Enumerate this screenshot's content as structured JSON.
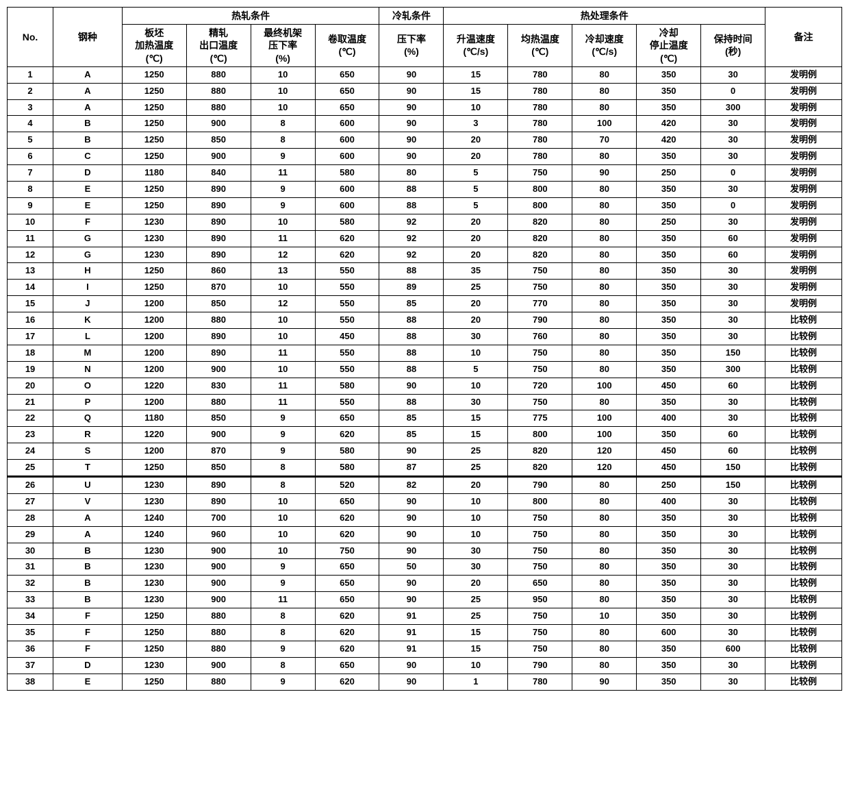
{
  "styling": {
    "background_color": "#ffffff",
    "border_color": "#000000",
    "border_width": 1.5,
    "heavy_border_width": 3,
    "text_color": "#000000",
    "font_weight": "bold",
    "font_size_header": 14,
    "font_size_cell": 13,
    "text_align": "center"
  },
  "headers": {
    "no": "No.",
    "steel_type": "钢种",
    "hot_roll_group": "热轧条件",
    "cold_roll_group": "冷轧条件",
    "heat_treat_group": "热处理条件",
    "slab_heat_temp": "板坯\n加热温度\n(℃)",
    "finish_exit_temp": "精轧\n出口温度\n(℃)",
    "final_stand_rate": "最终机架\n压下率\n(%)",
    "coil_temp": "卷取温度\n(℃)",
    "cold_reduction": "压下率\n(%)",
    "heating_rate": "升温速度\n(℃/s)",
    "soak_temp": "均热温度\n(℃)",
    "cool_rate": "冷却速度\n(℃/s)",
    "cool_stop_temp": "冷却\n停止温度\n(℃)",
    "hold_time": "保持时间\n(秒)",
    "note": "备注"
  },
  "note_labels": {
    "inv": "发明例",
    "comp": "比较例"
  },
  "column_widths": {
    "no": 60,
    "steel": 90,
    "val": 84,
    "note": 100
  },
  "heavy_separator_after_row": 25,
  "rows": [
    {
      "no": "1",
      "steel": "A",
      "v": [
        "1250",
        "880",
        "10",
        "650",
        "90",
        "15",
        "780",
        "80",
        "350",
        "30"
      ],
      "note": "inv"
    },
    {
      "no": "2",
      "steel": "A",
      "v": [
        "1250",
        "880",
        "10",
        "650",
        "90",
        "15",
        "780",
        "80",
        "350",
        "0"
      ],
      "note": "inv"
    },
    {
      "no": "3",
      "steel": "A",
      "v": [
        "1250",
        "880",
        "10",
        "650",
        "90",
        "10",
        "780",
        "80",
        "350",
        "300"
      ],
      "note": "inv"
    },
    {
      "no": "4",
      "steel": "B",
      "v": [
        "1250",
        "900",
        "8",
        "600",
        "90",
        "3",
        "780",
        "100",
        "420",
        "30"
      ],
      "note": "inv"
    },
    {
      "no": "5",
      "steel": "B",
      "v": [
        "1250",
        "850",
        "8",
        "600",
        "90",
        "20",
        "780",
        "70",
        "420",
        "30"
      ],
      "note": "inv"
    },
    {
      "no": "6",
      "steel": "C",
      "v": [
        "1250",
        "900",
        "9",
        "600",
        "90",
        "20",
        "780",
        "80",
        "350",
        "30"
      ],
      "note": "inv"
    },
    {
      "no": "7",
      "steel": "D",
      "v": [
        "1180",
        "840",
        "11",
        "580",
        "80",
        "5",
        "750",
        "90",
        "250",
        "0"
      ],
      "note": "inv"
    },
    {
      "no": "8",
      "steel": "E",
      "v": [
        "1250",
        "890",
        "9",
        "600",
        "88",
        "5",
        "800",
        "80",
        "350",
        "30"
      ],
      "note": "inv"
    },
    {
      "no": "9",
      "steel": "E",
      "v": [
        "1250",
        "890",
        "9",
        "600",
        "88",
        "5",
        "800",
        "80",
        "350",
        "0"
      ],
      "note": "inv"
    },
    {
      "no": "10",
      "steel": "F",
      "v": [
        "1230",
        "890",
        "10",
        "580",
        "92",
        "20",
        "820",
        "80",
        "250",
        "30"
      ],
      "note": "inv"
    },
    {
      "no": "11",
      "steel": "G",
      "v": [
        "1230",
        "890",
        "11",
        "620",
        "92",
        "20",
        "820",
        "80",
        "350",
        "60"
      ],
      "note": "inv"
    },
    {
      "no": "12",
      "steel": "G",
      "v": [
        "1230",
        "890",
        "12",
        "620",
        "92",
        "20",
        "820",
        "80",
        "350",
        "60"
      ],
      "note": "inv"
    },
    {
      "no": "13",
      "steel": "H",
      "v": [
        "1250",
        "860",
        "13",
        "550",
        "88",
        "35",
        "750",
        "80",
        "350",
        "30"
      ],
      "note": "inv"
    },
    {
      "no": "14",
      "steel": "I",
      "v": [
        "1250",
        "870",
        "10",
        "550",
        "89",
        "25",
        "750",
        "80",
        "350",
        "30"
      ],
      "note": "inv"
    },
    {
      "no": "15",
      "steel": "J",
      "v": [
        "1200",
        "850",
        "12",
        "550",
        "85",
        "20",
        "770",
        "80",
        "350",
        "30"
      ],
      "note": "inv"
    },
    {
      "no": "16",
      "steel": "K",
      "v": [
        "1200",
        "880",
        "10",
        "550",
        "88",
        "20",
        "790",
        "80",
        "350",
        "30"
      ],
      "note": "comp"
    },
    {
      "no": "17",
      "steel": "L",
      "v": [
        "1200",
        "890",
        "10",
        "450",
        "88",
        "30",
        "760",
        "80",
        "350",
        "30"
      ],
      "note": "comp"
    },
    {
      "no": "18",
      "steel": "M",
      "v": [
        "1200",
        "890",
        "11",
        "550",
        "88",
        "10",
        "750",
        "80",
        "350",
        "150"
      ],
      "note": "comp"
    },
    {
      "no": "19",
      "steel": "N",
      "v": [
        "1200",
        "900",
        "10",
        "550",
        "88",
        "5",
        "750",
        "80",
        "350",
        "300"
      ],
      "note": "comp"
    },
    {
      "no": "20",
      "steel": "O",
      "v": [
        "1220",
        "830",
        "11",
        "580",
        "90",
        "10",
        "720",
        "100",
        "450",
        "60"
      ],
      "note": "comp"
    },
    {
      "no": "21",
      "steel": "P",
      "v": [
        "1200",
        "880",
        "11",
        "550",
        "88",
        "30",
        "750",
        "80",
        "350",
        "30"
      ],
      "note": "comp"
    },
    {
      "no": "22",
      "steel": "Q",
      "v": [
        "1180",
        "850",
        "9",
        "650",
        "85",
        "15",
        "775",
        "100",
        "400",
        "30"
      ],
      "note": "comp"
    },
    {
      "no": "23",
      "steel": "R",
      "v": [
        "1220",
        "900",
        "9",
        "620",
        "85",
        "15",
        "800",
        "100",
        "350",
        "60"
      ],
      "note": "comp"
    },
    {
      "no": "24",
      "steel": "S",
      "v": [
        "1200",
        "870",
        "9",
        "580",
        "90",
        "25",
        "820",
        "120",
        "450",
        "60"
      ],
      "note": "comp"
    },
    {
      "no": "25",
      "steel": "T",
      "v": [
        "1250",
        "850",
        "8",
        "580",
        "87",
        "25",
        "820",
        "120",
        "450",
        "150"
      ],
      "note": "comp"
    },
    {
      "no": "26",
      "steel": "U",
      "v": [
        "1230",
        "890",
        "8",
        "520",
        "82",
        "20",
        "790",
        "80",
        "250",
        "150"
      ],
      "note": "comp"
    },
    {
      "no": "27",
      "steel": "V",
      "v": [
        "1230",
        "890",
        "10",
        "650",
        "90",
        "10",
        "800",
        "80",
        "400",
        "30"
      ],
      "note": "comp"
    },
    {
      "no": "28",
      "steel": "A",
      "v": [
        "1240",
        "700",
        "10",
        "620",
        "90",
        "10",
        "750",
        "80",
        "350",
        "30"
      ],
      "note": "comp"
    },
    {
      "no": "29",
      "steel": "A",
      "v": [
        "1240",
        "960",
        "10",
        "620",
        "90",
        "10",
        "750",
        "80",
        "350",
        "30"
      ],
      "note": "comp"
    },
    {
      "no": "30",
      "steel": "B",
      "v": [
        "1230",
        "900",
        "10",
        "750",
        "90",
        "30",
        "750",
        "80",
        "350",
        "30"
      ],
      "note": "comp"
    },
    {
      "no": "31",
      "steel": "B",
      "v": [
        "1230",
        "900",
        "9",
        "650",
        "50",
        "30",
        "750",
        "80",
        "350",
        "30"
      ],
      "note": "comp"
    },
    {
      "no": "32",
      "steel": "B",
      "v": [
        "1230",
        "900",
        "9",
        "650",
        "90",
        "20",
        "650",
        "80",
        "350",
        "30"
      ],
      "note": "comp"
    },
    {
      "no": "33",
      "steel": "B",
      "v": [
        "1230",
        "900",
        "11",
        "650",
        "90",
        "25",
        "950",
        "80",
        "350",
        "30"
      ],
      "note": "comp"
    },
    {
      "no": "34",
      "steel": "F",
      "v": [
        "1250",
        "880",
        "8",
        "620",
        "91",
        "25",
        "750",
        "10",
        "350",
        "30"
      ],
      "note": "comp"
    },
    {
      "no": "35",
      "steel": "F",
      "v": [
        "1250",
        "880",
        "8",
        "620",
        "91",
        "15",
        "750",
        "80",
        "600",
        "30"
      ],
      "note": "comp"
    },
    {
      "no": "36",
      "steel": "F",
      "v": [
        "1250",
        "880",
        "9",
        "620",
        "91",
        "15",
        "750",
        "80",
        "350",
        "600"
      ],
      "note": "comp"
    },
    {
      "no": "37",
      "steel": "D",
      "v": [
        "1230",
        "900",
        "8",
        "650",
        "90",
        "10",
        "790",
        "80",
        "350",
        "30"
      ],
      "note": "comp"
    },
    {
      "no": "38",
      "steel": "E",
      "v": [
        "1250",
        "880",
        "9",
        "620",
        "90",
        "1",
        "780",
        "90",
        "350",
        "30"
      ],
      "note": "comp"
    }
  ]
}
